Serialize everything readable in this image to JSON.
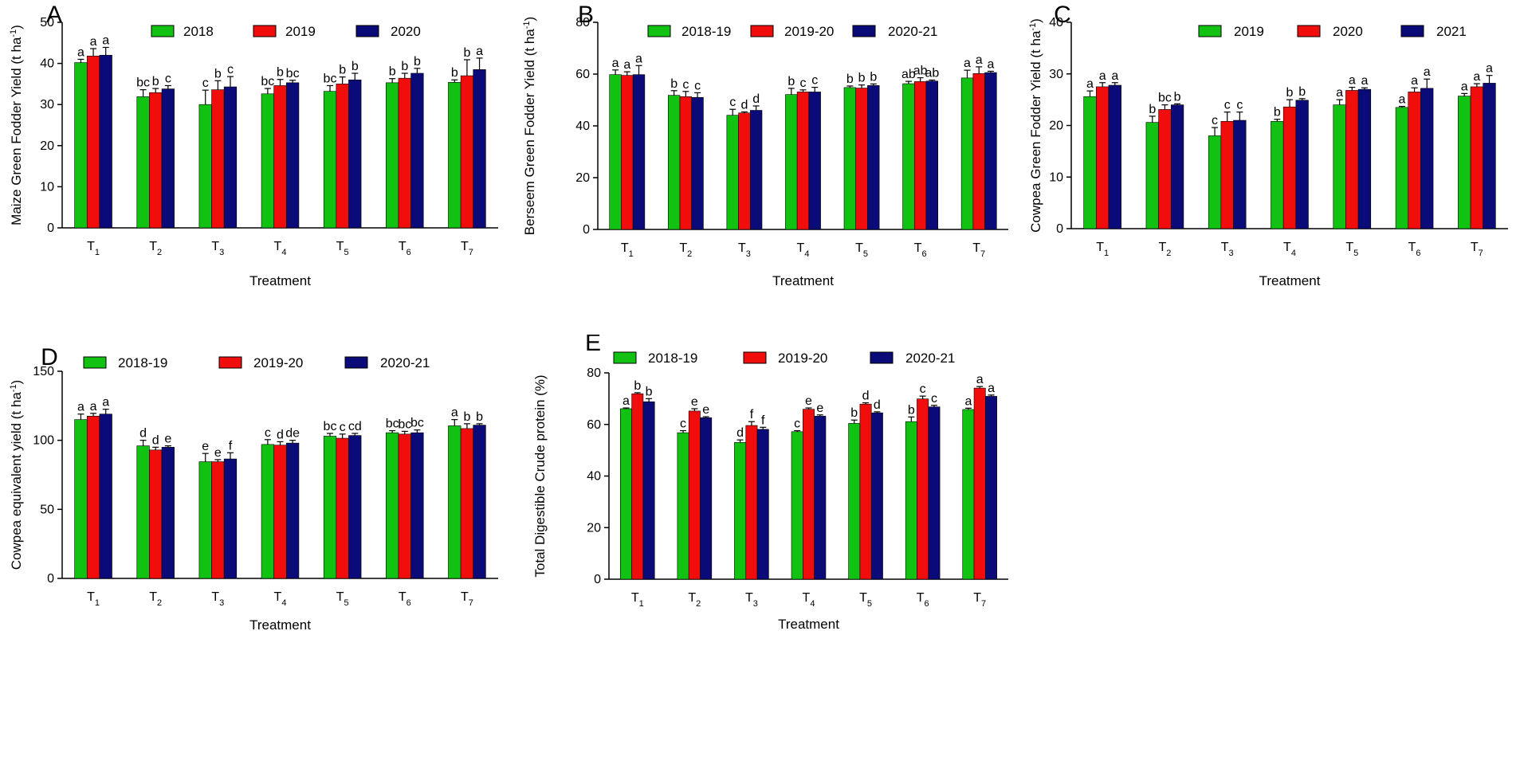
{
  "colors": {
    "green": "#12C212",
    "red": "#F20D0D",
    "blue": "#0A0A78"
  },
  "chart_data": [
    {
      "type": "bar",
      "panel": "A",
      "xlabel": "Treatment",
      "ylabel": "Maize Green Fodder Yield (t ha",
      "ylabel_sup": "-1",
      "ylabel_end": ")",
      "ylim": [
        0,
        50
      ],
      "yticks": [
        "0",
        "10",
        "20",
        "30",
        "40",
        "50"
      ],
      "ytick_values": [
        0,
        10,
        20,
        30,
        40,
        50
      ],
      "categories": [
        "T1",
        "T2",
        "T3",
        "T4",
        "T5",
        "T6",
        "T7"
      ],
      "category_base": "T",
      "category_subs": [
        "1",
        "2",
        "3",
        "4",
        "5",
        "6",
        "7"
      ],
      "series": [
        {
          "name": "2018",
          "values": [
            40.2,
            31.9,
            30.0,
            32.6,
            33.2,
            35.3,
            35.4
          ],
          "errors": [
            0.8,
            1.7,
            3.5,
            1.3,
            1.4,
            1.0,
            0.6
          ],
          "letters": [
            "a",
            "bc",
            "c",
            "bc",
            "bc",
            "b",
            "b"
          ]
        },
        {
          "name": "2019",
          "values": [
            41.8,
            32.9,
            33.6,
            34.6,
            35.0,
            36.4,
            37.0
          ],
          "errors": [
            1.8,
            1.0,
            2.2,
            1.5,
            1.7,
            1.2,
            3.9
          ],
          "letters": [
            "a",
            "b",
            "b",
            "b",
            "b",
            "b",
            "b"
          ]
        },
        {
          "name": "2020",
          "values": [
            42.0,
            33.8,
            34.3,
            35.3,
            36.0,
            37.6,
            38.5
          ],
          "errors": [
            1.9,
            0.8,
            2.5,
            0.6,
            1.6,
            1.2,
            2.8
          ],
          "letters": [
            "a",
            "c",
            "c",
            "bc",
            "b",
            "b",
            "a"
          ]
        }
      ]
    },
    {
      "type": "bar",
      "panel": "B",
      "xlabel": "Treatment",
      "ylabel": "Berseem Green Fodder Yield (t ha",
      "ylabel_sup": "-1",
      "ylabel_end": ")",
      "ylim": [
        0,
        80
      ],
      "yticks": [
        "0",
        "20",
        "40",
        "60",
        "80"
      ],
      "ytick_values": [
        0,
        20,
        40,
        60,
        80
      ],
      "categories": [
        "T1",
        "T2",
        "T3",
        "T4",
        "T5",
        "T6",
        "T7"
      ],
      "category_base": "T",
      "category_subs": [
        "1",
        "2",
        "3",
        "4",
        "5",
        "6",
        "7"
      ],
      "series": [
        {
          "name": "2018-19",
          "values": [
            59.8,
            51.8,
            44.1,
            52.1,
            54.8,
            56.3,
            58.5
          ],
          "errors": [
            1.8,
            1.8,
            2.3,
            2.4,
            0.6,
            0.9,
            3.0
          ],
          "letters": [
            "a",
            "b",
            "c",
            "b",
            "b",
            "ab",
            "a"
          ]
        },
        {
          "name": "2019-20",
          "values": [
            59.5,
            51.3,
            45.0,
            53.1,
            54.6,
            57.1,
            60.2
          ],
          "errors": [
            1.4,
            2.0,
            0.4,
            0.8,
            1.2,
            1.5,
            2.6
          ],
          "letters": [
            "a",
            "c",
            "d",
            "c",
            "b",
            "ab",
            "a"
          ]
        },
        {
          "name": "2020-21",
          "values": [
            59.8,
            51.0,
            46.0,
            53.1,
            55.6,
            57.3,
            60.6
          ],
          "errors": [
            3.5,
            1.8,
            1.7,
            1.8,
            0.6,
            0.4,
            0.5
          ],
          "letters": [
            "a",
            "c",
            "d",
            "c",
            "b",
            "ab",
            "a"
          ]
        }
      ]
    },
    {
      "type": "bar",
      "panel": "C",
      "xlabel": "Treatment",
      "ylabel": "Cowpea Green Fodder Yield (t ha",
      "ylabel_sup": "-1",
      "ylabel_end": ")",
      "ylim": [
        0,
        40
      ],
      "yticks": [
        "0",
        "10",
        "20",
        "30",
        "40"
      ],
      "ytick_values": [
        0,
        10,
        20,
        30,
        40
      ],
      "categories": [
        "T1",
        "T2",
        "T3",
        "T4",
        "T5",
        "T6",
        "T7"
      ],
      "category_base": "T",
      "category_subs": [
        "1",
        "2",
        "3",
        "4",
        "5",
        "6",
        "7"
      ],
      "series": [
        {
          "name": "2019",
          "values": [
            25.6,
            20.6,
            18.0,
            20.8,
            24.0,
            23.5,
            25.7
          ],
          "errors": [
            1.1,
            1.2,
            1.6,
            0.4,
            1.0,
            0.2,
            0.5
          ],
          "letters": [
            "a",
            "b",
            "c",
            "b",
            "a",
            "a",
            "a"
          ]
        },
        {
          "name": "2020",
          "values": [
            27.5,
            23.1,
            20.8,
            23.6,
            26.8,
            26.5,
            27.5
          ],
          "errors": [
            0.8,
            0.9,
            1.8,
            1.4,
            0.6,
            0.8,
            0.6
          ],
          "letters": [
            "a",
            "bc",
            "c",
            "b",
            "a",
            "a",
            "a"
          ]
        },
        {
          "name": "2021",
          "values": [
            27.8,
            24.0,
            21.0,
            24.9,
            27.0,
            27.2,
            28.2
          ],
          "errors": [
            0.5,
            0.2,
            1.6,
            0.3,
            0.3,
            1.8,
            1.5
          ],
          "letters": [
            "a",
            "b",
            "c",
            "b",
            "a",
            "a",
            "a"
          ]
        }
      ]
    },
    {
      "type": "bar",
      "panel": "D",
      "xlabel": "Treatment",
      "ylabel": "Cowpea equivalent yield (t ha",
      "ylabel_sup": "-1",
      "ylabel_end": ")",
      "ylim": [
        0,
        150
      ],
      "yticks": [
        "0",
        "50",
        "100",
        "150"
      ],
      "ytick_values": [
        0,
        50,
        100,
        150
      ],
      "categories": [
        "T1",
        "T2",
        "T3",
        "T4",
        "T5",
        "T6",
        "T7"
      ],
      "category_base": "T",
      "category_subs": [
        "1",
        "2",
        "3",
        "4",
        "5",
        "6",
        "7"
      ],
      "series": [
        {
          "name": "2018-19",
          "values": [
            115.0,
            96.0,
            84.5,
            97.0,
            103.0,
            105.5,
            110.5
          ],
          "errors": [
            4.0,
            4.0,
            6.0,
            3.5,
            2.0,
            1.5,
            4.5
          ],
          "letters": [
            "a",
            "d",
            "e",
            "c",
            "bc",
            "bc",
            "a"
          ]
        },
        {
          "name": "2019-20",
          "values": [
            117.5,
            93.0,
            84.5,
            96.5,
            101.5,
            104.5,
            108.5
          ],
          "errors": [
            2.0,
            2.0,
            1.5,
            2.5,
            3.0,
            2.0,
            3.5
          ],
          "letters": [
            "a",
            "d",
            "e",
            "d",
            "c",
            "bc",
            "b"
          ]
        },
        {
          "name": "2020-21",
          "values": [
            119.0,
            95.0,
            86.5,
            98.0,
            103.5,
            105.5,
            111.0
          ],
          "errors": [
            3.5,
            1.0,
            4.5,
            2.0,
            1.5,
            2.0,
            1.0
          ],
          "letters": [
            "a",
            "e",
            "f",
            "de",
            "cd",
            "bc",
            "b"
          ]
        }
      ]
    },
    {
      "type": "bar",
      "panel": "E",
      "xlabel": "Treatment",
      "ylabel": "Total Digestible Crude protein (%)",
      "ylabel_sup": "",
      "ylabel_end": "",
      "ylim": [
        0,
        80
      ],
      "yticks": [
        "0",
        "20",
        "40",
        "60",
        "80"
      ],
      "ytick_values": [
        0,
        20,
        40,
        60,
        80
      ],
      "categories": [
        "T1",
        "T2",
        "T3",
        "T4",
        "T5",
        "T6",
        "T7"
      ],
      "category_base": "T",
      "category_subs": [
        "1",
        "2",
        "3",
        "4",
        "5",
        "6",
        "7"
      ],
      "series": [
        {
          "name": "2018-19",
          "values": [
            66.1,
            56.8,
            53.0,
            57.2,
            60.4,
            61.1,
            65.8
          ],
          "errors": [
            0.3,
            0.8,
            1.0,
            0.4,
            1.3,
            1.8,
            0.5
          ],
          "letters": [
            "a",
            "c",
            "d",
            "c",
            "b",
            "b",
            "a"
          ]
        },
        {
          "name": "2019-20",
          "values": [
            71.9,
            65.2,
            59.6,
            65.9,
            67.9,
            69.9,
            74.1
          ],
          "errors": [
            0.4,
            0.9,
            1.5,
            0.5,
            0.5,
            1.1,
            0.6
          ],
          "letters": [
            "b",
            "e",
            "f",
            "e",
            "d",
            "c",
            "a"
          ]
        },
        {
          "name": "2020-21",
          "values": [
            68.8,
            62.6,
            58.1,
            63.2,
            64.5,
            66.8,
            70.9
          ],
          "errors": [
            1.2,
            0.4,
            0.8,
            0.5,
            0.4,
            0.6,
            0.5
          ],
          "letters": [
            "b",
            "e",
            "f",
            "e",
            "d",
            "c",
            "a"
          ]
        }
      ]
    }
  ]
}
